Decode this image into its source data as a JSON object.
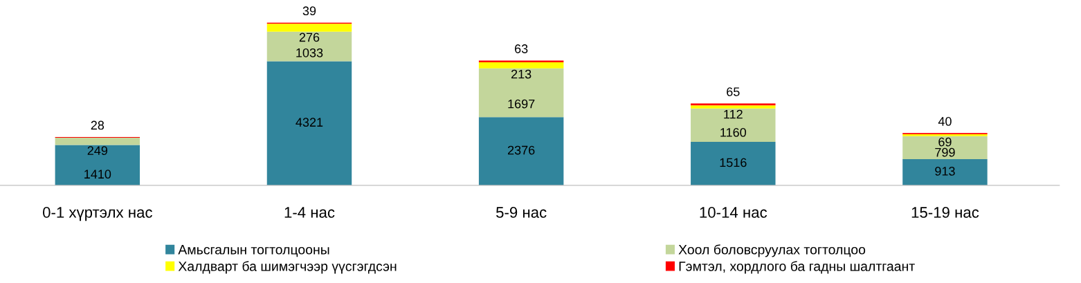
{
  "chart_data": {
    "type": "bar",
    "stacked": true,
    "data_labels": true,
    "legend": "bottom",
    "grid": false,
    "categories": [
      "0-1 хүртэлх нас",
      "1-4 нас",
      "5-9 нас",
      "10-14 нас",
      "15-19 нас"
    ],
    "series": [
      {
        "name": "Амьсгалын тогтолцооны",
        "color": "#31859c",
        "values": [
          1410,
          4321,
          2376,
          1516,
          913
        ]
      },
      {
        "name": "Хоол боловсруулах тогтолцоо",
        "color": "#c3d69b",
        "values": [
          249,
          1033,
          1697,
          1160,
          799
        ]
      },
      {
        "name": "Халдварт ба шимэгчээр үүсгэгдсэн",
        "color": "#ffff00",
        "values": [
          null,
          276,
          213,
          112,
          69
        ]
      },
      {
        "name": "Гэмтэл, хордлого ба гадны шалтгаант",
        "color": "#ff0000",
        "values": [
          28,
          39,
          63,
          65,
          40
        ]
      }
    ]
  }
}
